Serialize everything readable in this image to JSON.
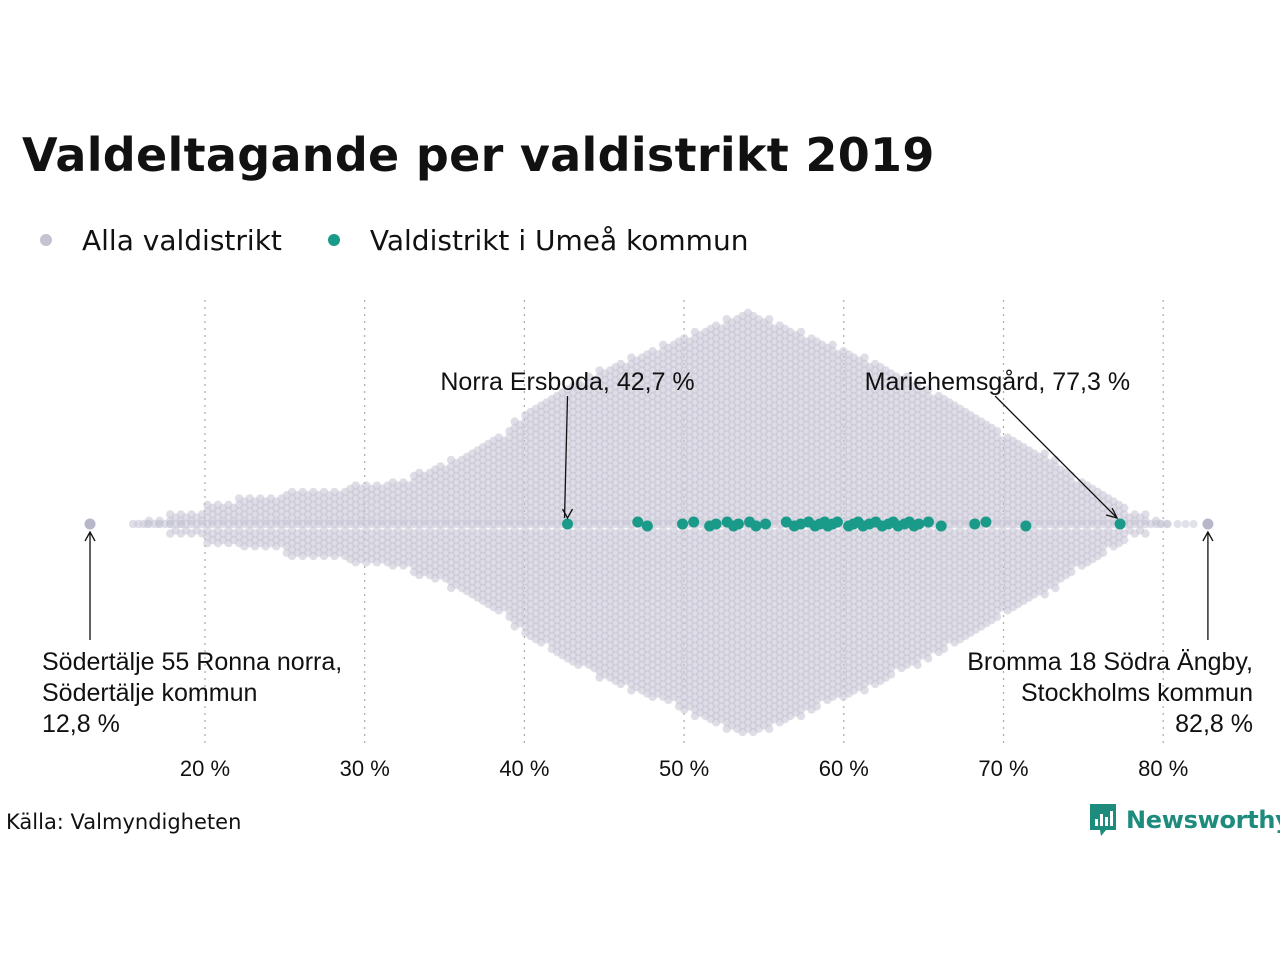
{
  "title": "Valdeltagande per valdistrikt 2019",
  "legend": [
    {
      "label": "Alla valdistrikt",
      "color": "#c4c3d3"
    },
    {
      "label": "Valdistrikt i Umeå kommun",
      "color": "#1a9a88"
    }
  ],
  "source": "Källa: Valmyndigheten",
  "brand": {
    "name": "Newsworthy",
    "color": "#1e8c7c",
    "icon": "chart-bubble-icon"
  },
  "chart_data": {
    "type": "scatter",
    "subtype": "beeswarm",
    "xlim": [
      9,
      85
    ],
    "x_ticks": [
      {
        "value": 20,
        "label": "20 %"
      },
      {
        "value": 30,
        "label": "30 %"
      },
      {
        "value": 40,
        "label": "40 %"
      },
      {
        "value": 50,
        "label": "50 %"
      },
      {
        "value": 60,
        "label": "60 %"
      },
      {
        "value": 70,
        "label": "70 %"
      },
      {
        "value": 80,
        "label": "80 %"
      }
    ],
    "grid": "vertical dotted",
    "series": [
      {
        "name": "Alla valdistrikt",
        "color": "#c4c3d3",
        "values": [
          12.8,
          82.8
        ],
        "distribution_profile": [
          [
            16,
            1
          ],
          [
            19,
            2
          ],
          [
            23,
            4
          ],
          [
            27,
            5
          ],
          [
            31,
            6
          ],
          [
            35,
            9
          ],
          [
            38,
            13
          ],
          [
            41,
            19
          ],
          [
            45,
            24
          ],
          [
            50,
            29
          ],
          [
            54,
            33
          ],
          [
            58,
            29
          ],
          [
            62,
            25
          ],
          [
            66,
            20
          ],
          [
            70,
            14
          ],
          [
            73,
            10
          ],
          [
            76,
            5
          ],
          [
            78,
            2
          ],
          [
            80,
            1
          ]
        ]
      },
      {
        "name": "Valdistrikt i Umeå kommun",
        "color": "#1a9a88",
        "values": [
          42.7,
          47.1,
          47.7,
          49.9,
          50.6,
          51.6,
          52.0,
          52.7,
          53.1,
          53.4,
          54.1,
          54.5,
          55.1,
          56.4,
          56.9,
          57.3,
          57.8,
          58.2,
          58.5,
          58.8,
          59.0,
          59.3,
          59.6,
          60.3,
          60.6,
          60.9,
          61.2,
          61.6,
          62.0,
          62.4,
          62.8,
          63.1,
          63.4,
          63.8,
          64.1,
          64.4,
          64.7,
          65.3,
          66.1,
          68.2,
          68.9,
          71.4,
          77.3
        ]
      }
    ],
    "annotations": [
      {
        "label": "Norra Ersboda, 42,7 %",
        "x": 42.7,
        "pos": "above"
      },
      {
        "label": "Mariehemsgård, 77,3 %",
        "x": 77.3,
        "pos": "above"
      },
      {
        "lines": [
          "Södertälje 55 Ronna norra,",
          "Södertälje kommun",
          "12,8 %"
        ],
        "x": 12.8,
        "pos": "below-left"
      },
      {
        "lines": [
          "Bromma 18 Södra Ängby,",
          "Stockholms kommun",
          "82,8 %"
        ],
        "x": 82.8,
        "pos": "below-right"
      }
    ]
  }
}
